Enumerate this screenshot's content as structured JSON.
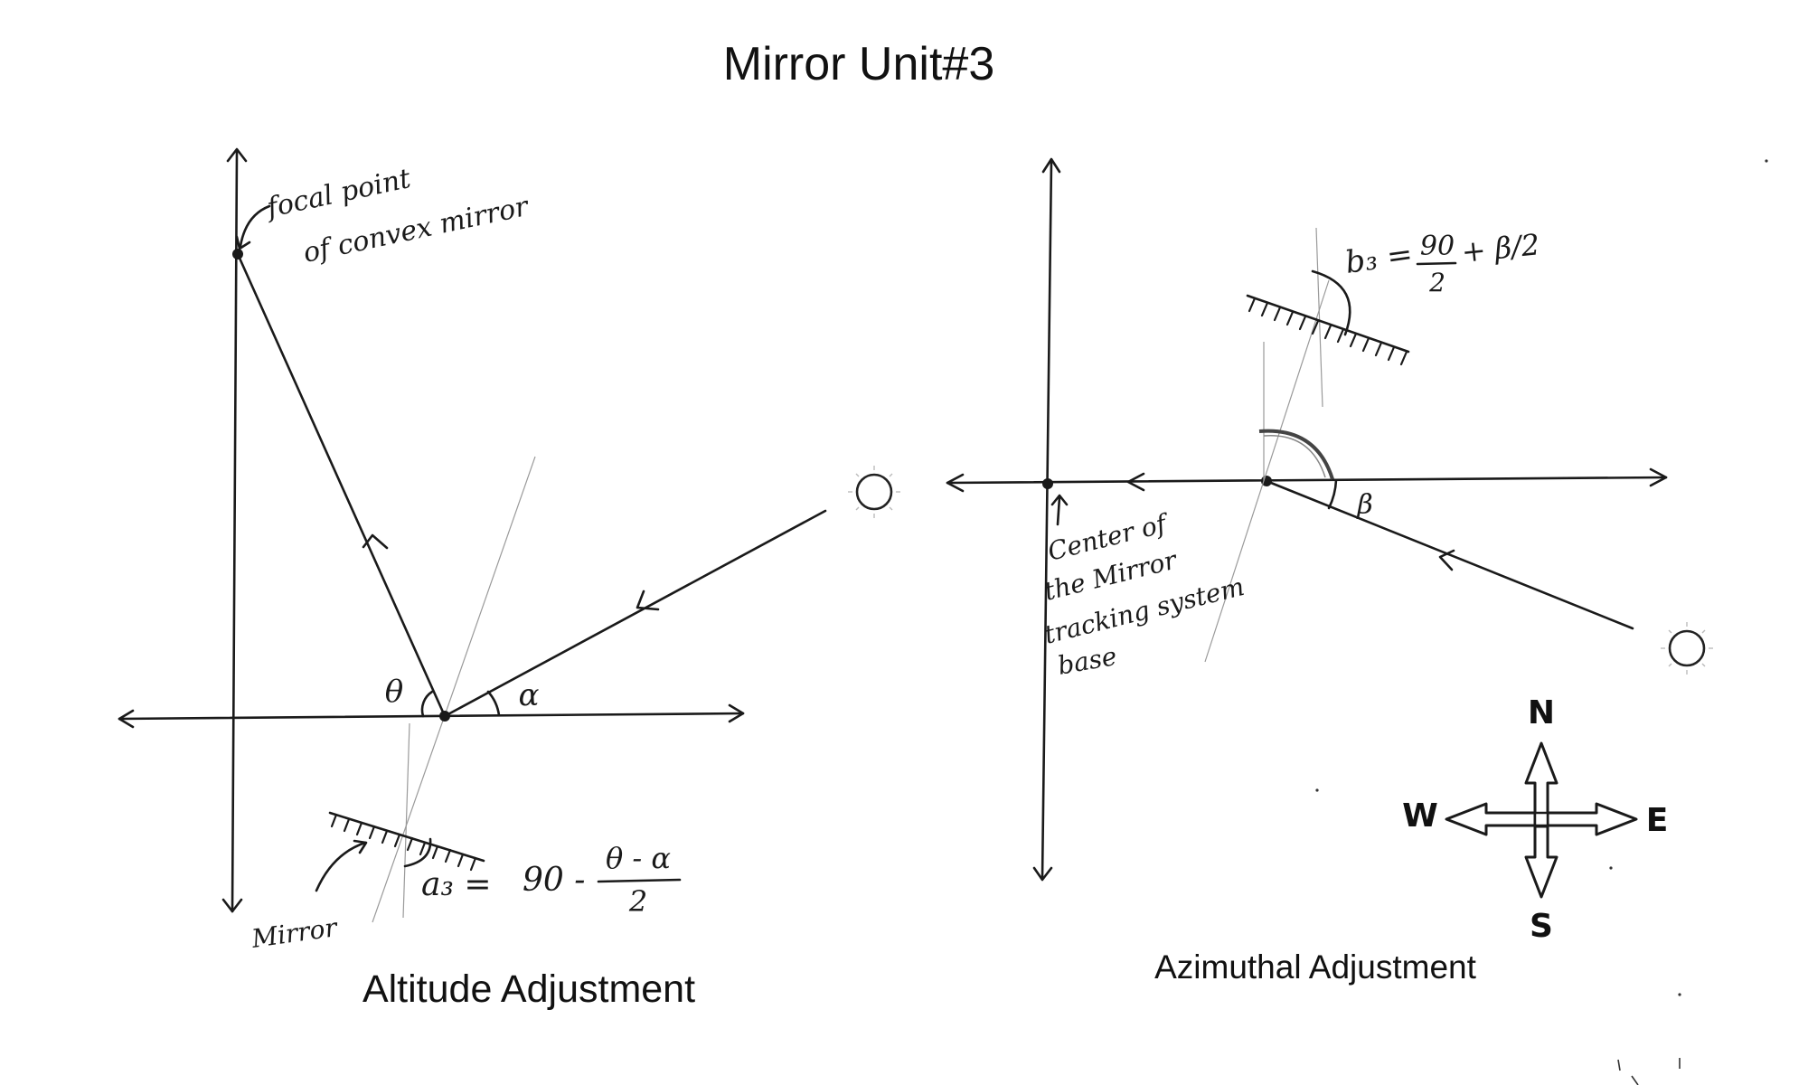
{
  "title": "Mirror Unit#3",
  "altitude": {
    "caption": "Altitude Adjustment",
    "focal_label_line1": "focal point",
    "focal_label_line2": "of convex mirror",
    "theta_label": "θ",
    "alpha_label": "α",
    "mirror_label": "Mirror",
    "formula_lhs": "a₃ =",
    "formula_mid": "90 -",
    "formula_num": "θ - α",
    "formula_den": "2"
  },
  "azimuthal": {
    "caption": "Azimuthal Adjustment",
    "beta_label": "β",
    "formula_lhs": "b₃ =",
    "formula_num": "90",
    "formula_den": "2",
    "formula_rhs": "+ β/2",
    "center_line1": "Center of",
    "center_line2": "the Mirror",
    "center_line3": "tracking system",
    "center_line4": "base"
  },
  "compass": {
    "north": "N",
    "south": "S",
    "east": "E",
    "west": "W"
  }
}
